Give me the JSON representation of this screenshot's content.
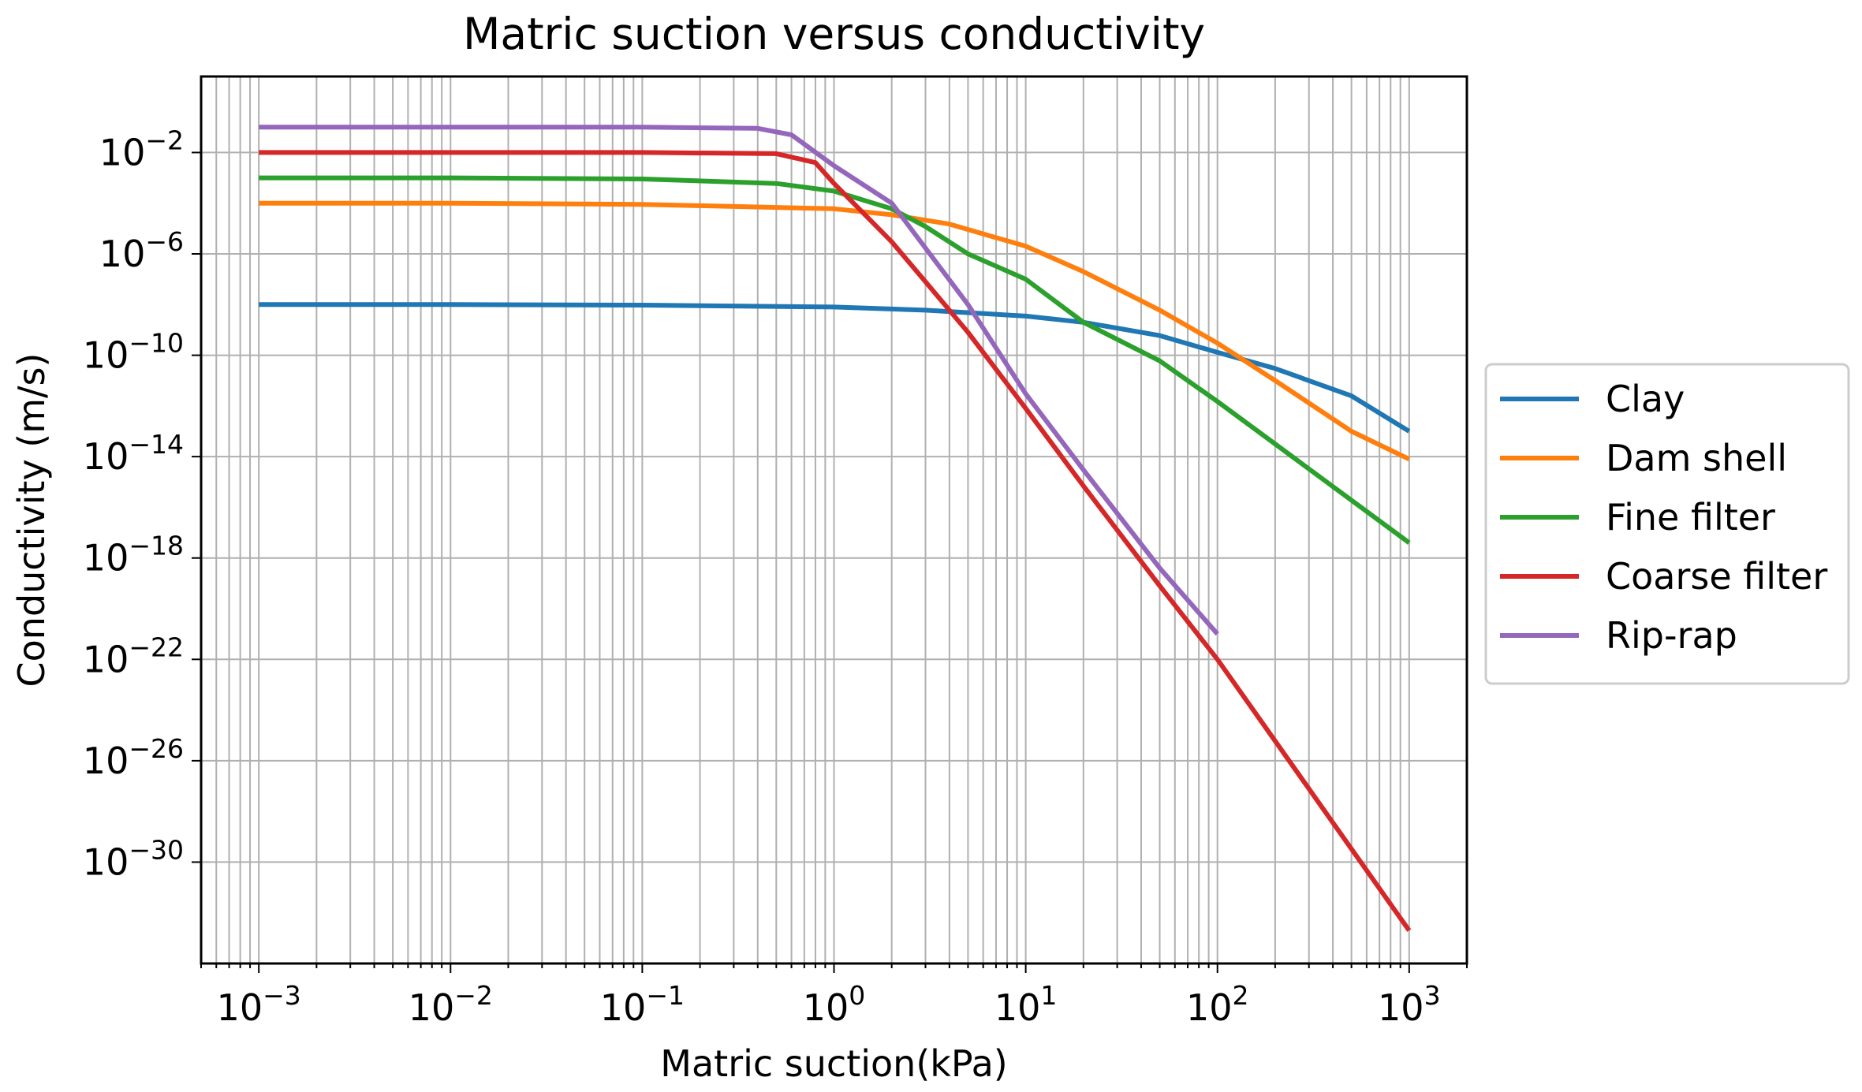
{
  "chart_data": {
    "type": "line",
    "title": "Matric suction versus conductivity",
    "xlabel": "Matric suction(kPa)",
    "ylabel": "Conductivity (m/s)",
    "xscale": "log",
    "yscale": "log",
    "xlim": [
      0.0005,
      2000
    ],
    "ylim": [
      1e-34,
      10.0
    ],
    "grid": true,
    "grid_minor": true,
    "legend_position": "center-right-outside",
    "x_ticks": [
      {
        "value": 0.001,
        "base": "10",
        "exp": "−3"
      },
      {
        "value": 0.01,
        "base": "10",
        "exp": "−2"
      },
      {
        "value": 0.1,
        "base": "10",
        "exp": "−1"
      },
      {
        "value": 1,
        "base": "10",
        "exp": "0"
      },
      {
        "value": 10,
        "base": "10",
        "exp": "1"
      },
      {
        "value": 100,
        "base": "10",
        "exp": "2"
      },
      {
        "value": 1000,
        "base": "10",
        "exp": "3"
      }
    ],
    "y_ticks": [
      {
        "value": 0.01,
        "base": "10",
        "exp": "−2"
      },
      {
        "value": 1e-06,
        "base": "10",
        "exp": "−6"
      },
      {
        "value": 1e-10,
        "base": "10",
        "exp": "−10"
      },
      {
        "value": 1e-14,
        "base": "10",
        "exp": "−14"
      },
      {
        "value": 1e-18,
        "base": "10",
        "exp": "−18"
      },
      {
        "value": 1e-22,
        "base": "10",
        "exp": "−22"
      },
      {
        "value": 1e-26,
        "base": "10",
        "exp": "−26"
      },
      {
        "value": 1e-30,
        "base": "10",
        "exp": "−30"
      }
    ],
    "series": [
      {
        "name": "Clay",
        "color": "#1f77b4",
        "x": [
          0.001,
          0.01,
          0.1,
          1,
          3,
          10,
          20,
          50,
          100,
          200,
          500,
          1000
        ],
        "y": [
          1e-08,
          1e-08,
          9.5e-09,
          8e-09,
          6e-09,
          3.5e-09,
          2e-09,
          6e-10,
          1.3e-10,
          3e-11,
          2.5e-12,
          1e-13
        ]
      },
      {
        "name": "Dam shell",
        "color": "#ff7f0e",
        "x": [
          0.001,
          0.01,
          0.1,
          1,
          2,
          4,
          10,
          20,
          50,
          100,
          200,
          500,
          1000
        ],
        "y": [
          0.0001,
          0.0001,
          9e-05,
          6e-05,
          3.5e-05,
          1.5e-05,
          2e-06,
          2e-07,
          6e-09,
          3e-10,
          1e-11,
          1e-13,
          8e-15
        ]
      },
      {
        "name": "Fine filter",
        "color": "#2ca02c",
        "x": [
          0.001,
          0.01,
          0.1,
          0.5,
          1,
          2,
          3,
          5,
          10,
          20,
          50,
          100,
          1000
        ],
        "y": [
          0.001,
          0.001,
          0.0009,
          0.0006,
          0.0003,
          6e-05,
          1.2e-05,
          1e-06,
          1e-07,
          2e-09,
          6e-11,
          1.5e-12,
          4e-18
        ]
      },
      {
        "name": "Coarse filter",
        "color": "#d62728",
        "x": [
          0.001,
          0.01,
          0.1,
          0.5,
          0.8,
          1,
          2,
          3,
          5,
          10,
          20,
          50,
          100,
          1000
        ],
        "y": [
          0.01,
          0.01,
          0.01,
          0.009,
          0.004,
          0.0006,
          3e-06,
          8e-08,
          8e-10,
          8e-13,
          7e-16,
          8e-20,
          1e-22,
          2e-33
        ]
      },
      {
        "name": "Rip-rap",
        "color": "#9467bd",
        "x": [
          0.001,
          0.01,
          0.1,
          0.4,
          0.6,
          1,
          2,
          5,
          10,
          20,
          50,
          100
        ],
        "y": [
          0.1,
          0.1,
          0.1,
          0.09,
          0.05,
          0.003,
          0.0001,
          1e-08,
          3e-12,
          3e-15,
          4e-19,
          1e-21
        ]
      }
    ]
  }
}
